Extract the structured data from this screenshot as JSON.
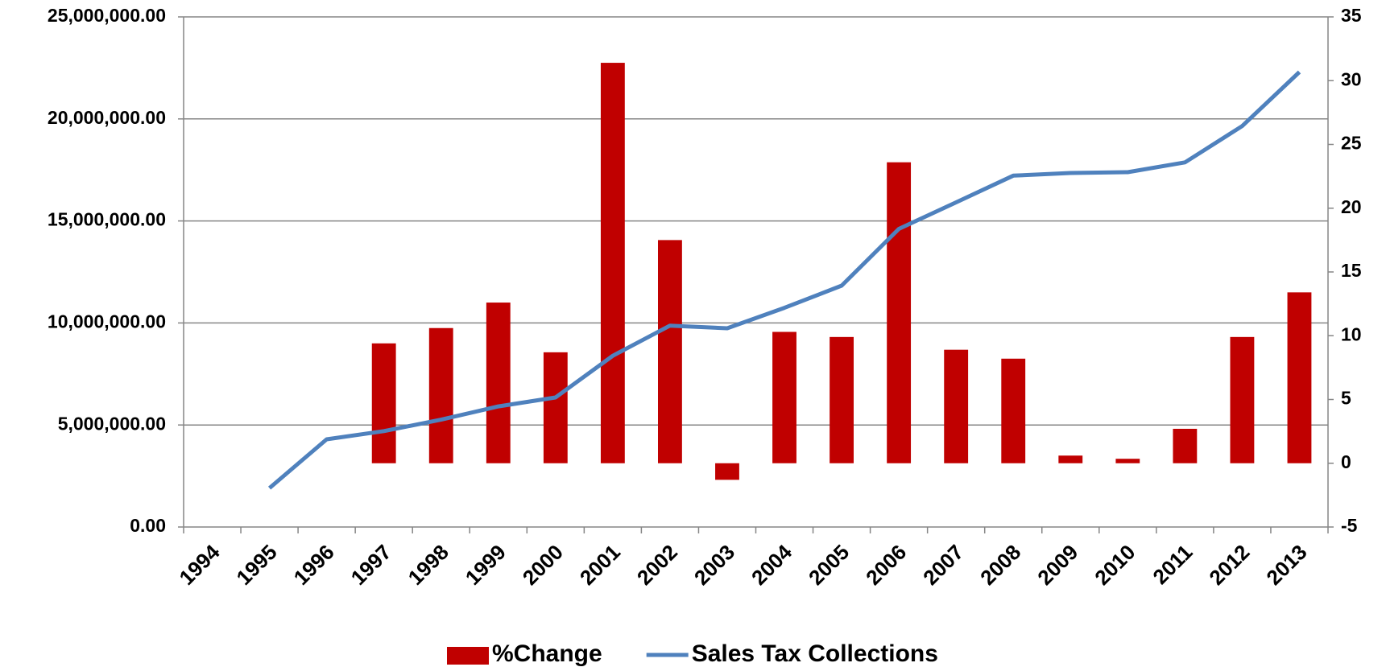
{
  "chart_data": {
    "type": "bar-line",
    "categories": [
      "1994",
      "1995",
      "1996",
      "1997",
      "1998",
      "1999",
      "2000",
      "2001",
      "2002",
      "2003",
      "2004",
      "2005",
      "2006",
      "2007",
      "2008",
      "2009",
      "2010",
      "2011",
      "2012",
      "2013"
    ],
    "series": [
      {
        "name": "%Change",
        "type": "bar",
        "axis": "y2",
        "color": "#c00000",
        "values": [
          null,
          null,
          null,
          9.4,
          10.6,
          12.6,
          8.7,
          31.4,
          17.5,
          -1.3,
          10.3,
          9.9,
          23.6,
          8.9,
          8.2,
          0.6,
          0.35,
          2.7,
          9.9,
          13.4
        ]
      },
      {
        "name": "Sales Tax Collections",
        "type": "line",
        "axis": "y",
        "color": "#4f81bd",
        "values": [
          null,
          1910000,
          4300000,
          4700000,
          5260000,
          5910000,
          6350000,
          8390000,
          9870000,
          9740000,
          10740000,
          11830000,
          14610000,
          15910000,
          17220000,
          17350000,
          17390000,
          17870000,
          19650000,
          22300000
        ]
      }
    ],
    "ylim": [
      0,
      25000000
    ],
    "yticks": [
      {
        "value": 0,
        "label": "0.00"
      },
      {
        "value": 5000000,
        "label": "5,000,000.00"
      },
      {
        "value": 10000000,
        "label": "10,000,000.00"
      },
      {
        "value": 15000000,
        "label": "15,000,000.00"
      },
      {
        "value": 20000000,
        "label": "20,000,000.00"
      },
      {
        "value": 25000000,
        "label": "25,000,000.00"
      }
    ],
    "y2lim": [
      -5,
      35
    ],
    "y2ticks": [
      -5,
      0,
      5,
      10,
      15,
      20,
      25,
      30,
      35
    ],
    "grid": true,
    "legend": "bottom"
  }
}
